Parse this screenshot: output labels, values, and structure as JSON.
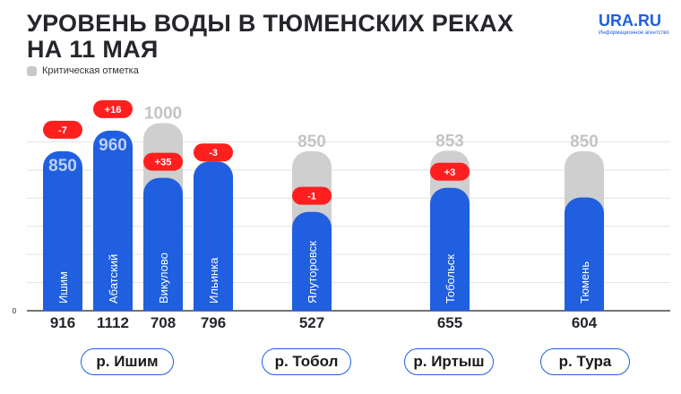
{
  "title": "УРОВЕНЬ ВОДЫ В ТЮМЕНСКИХ РЕКАХ НА 11 МАЯ",
  "logo": {
    "name": "URA.RU",
    "tagline": "Информационное агентство"
  },
  "legend": {
    "critical_label": "Критическая отметка"
  },
  "colors": {
    "bar": "#1f5fe0",
    "critical": "#cfcfcf",
    "change": "#ff1f1f",
    "text": "#25262b"
  },
  "chart_data": {
    "type": "bar",
    "ylim": [
      0,
      1050
    ],
    "grid": true,
    "zero_label": "0",
    "categories": [
      "Ишим",
      "Абатский",
      "Викулово",
      "Ильинка",
      "Ялуторовск",
      "Тобольск",
      "Тюмень"
    ],
    "series": [
      {
        "values": [
          850,
          960,
          708,
          796,
          527,
          655,
          604
        ]
      }
    ],
    "level_labels": [
      "850",
      "960",
      "",
      "",
      "",
      "",
      ""
    ],
    "critical": [
      null,
      null,
      1000,
      800,
      850,
      853,
      850
    ],
    "change": [
      "-7",
      "+16",
      "+35",
      "-3",
      "-1",
      "+3",
      ""
    ],
    "below_values": [
      "916",
      "1112",
      "708",
      "796",
      "527",
      "655",
      "604"
    ],
    "rivers": [
      "р. Ишим",
      "р. Тобол",
      "р. Иртыш",
      "р. Тура"
    ]
  }
}
